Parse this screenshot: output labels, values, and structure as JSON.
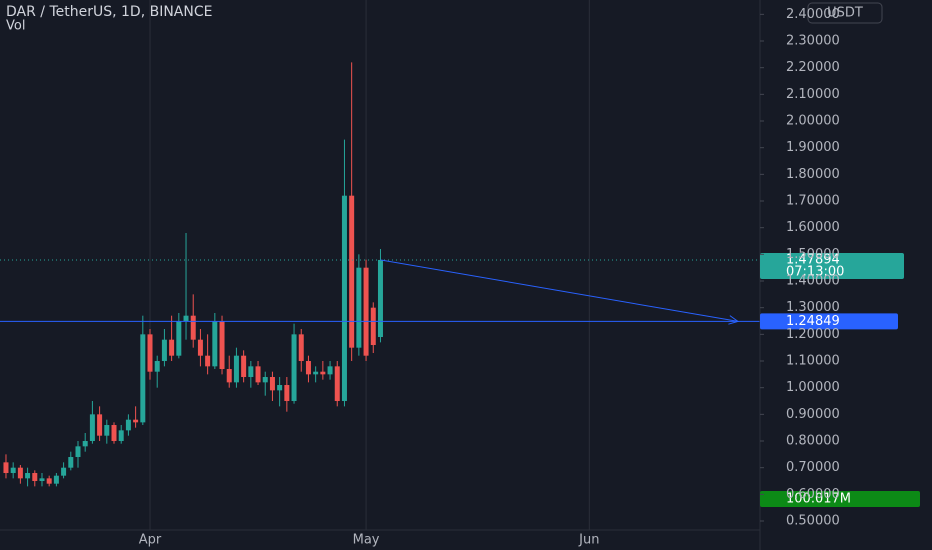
{
  "chart_data": {
    "type": "candlestick",
    "title": "DAR / TetherUS, 1D, BINANCE",
    "subtitle": "Vol",
    "currency": "USDT",
    "up_color": "#26a69a",
    "down_color": "#ef5350",
    "open": [
      0.72,
      0.68,
      0.7,
      0.66,
      0.68,
      0.65,
      0.66,
      0.64,
      0.67,
      0.7,
      0.74,
      0.78,
      0.8,
      0.9,
      0.82,
      0.86,
      0.8,
      0.84,
      0.88,
      0.87,
      1.2,
      1.06,
      1.1,
      1.18,
      1.12,
      1.25,
      1.27,
      1.18,
      1.12,
      1.08,
      1.25,
      1.07,
      1.02,
      1.12,
      1.04,
      1.08,
      1.02,
      1.04,
      0.99,
      1.01,
      0.95,
      1.2,
      1.1,
      1.05,
      1.06,
      1.05,
      1.08,
      0.95,
      1.72,
      1.15,
      1.45,
      1.3,
      1.19
    ],
    "high": [
      0.75,
      0.72,
      0.71,
      0.7,
      0.69,
      0.68,
      0.67,
      0.68,
      0.72,
      0.76,
      0.8,
      0.83,
      0.95,
      0.93,
      0.88,
      0.87,
      0.86,
      0.9,
      0.93,
      1.27,
      1.22,
      1.12,
      1.22,
      1.27,
      1.28,
      1.58,
      1.35,
      1.22,
      1.2,
      1.28,
      1.27,
      1.12,
      1.15,
      1.14,
      1.1,
      1.1,
      1.06,
      1.06,
      1.04,
      1.04,
      1.24,
      1.22,
      1.12,
      1.08,
      1.1,
      1.1,
      1.1,
      1.93,
      2.22,
      1.5,
      1.48,
      1.32,
      1.52
    ],
    "low": [
      0.66,
      0.66,
      0.64,
      0.63,
      0.63,
      0.63,
      0.63,
      0.63,
      0.66,
      0.69,
      0.7,
      0.76,
      0.79,
      0.8,
      0.79,
      0.79,
      0.79,
      0.82,
      0.85,
      0.86,
      1.03,
      1.0,
      1.08,
      1.1,
      1.11,
      1.18,
      1.15,
      1.08,
      1.05,
      1.07,
      1.05,
      1.0,
      1.0,
      1.02,
      1.0,
      1.01,
      0.97,
      0.95,
      0.93,
      0.91,
      0.94,
      1.06,
      1.02,
      1.02,
      1.03,
      1.03,
      0.93,
      0.93,
      1.1,
      1.12,
      1.1,
      1.13,
      1.17
    ],
    "close": [
      0.68,
      0.7,
      0.66,
      0.68,
      0.65,
      0.66,
      0.64,
      0.67,
      0.7,
      0.74,
      0.78,
      0.8,
      0.9,
      0.82,
      0.86,
      0.8,
      0.84,
      0.88,
      0.87,
      1.2,
      1.06,
      1.1,
      1.18,
      1.12,
      1.25,
      1.27,
      1.18,
      1.12,
      1.08,
      1.25,
      1.07,
      1.02,
      1.12,
      1.04,
      1.08,
      1.02,
      1.04,
      0.99,
      1.01,
      0.95,
      1.2,
      1.1,
      1.05,
      1.06,
      1.05,
      1.08,
      0.95,
      1.72,
      1.15,
      1.45,
      1.12,
      1.16,
      1.47894
    ],
    "xlim": [
      -0.83,
      104.7
    ],
    "xticks": [
      {
        "value": 20,
        "label": "Apr"
      },
      {
        "value": 50,
        "label": "May"
      },
      {
        "value": 81,
        "label": "Jun"
      }
    ],
    "ylim": [
      0.4663,
      2.4538
    ],
    "yticks": [
      {
        "value": 0.5,
        "label": "0.50000"
      },
      {
        "value": 0.6,
        "label": "0.60000"
      },
      {
        "value": 0.7,
        "label": "0.70000"
      },
      {
        "value": 0.8,
        "label": "0.80000"
      },
      {
        "value": 0.9,
        "label": "0.90000"
      },
      {
        "value": 1.0,
        "label": "1.00000"
      },
      {
        "value": 1.1,
        "label": "1.10000"
      },
      {
        "value": 1.2,
        "label": "1.20000"
      },
      {
        "value": 1.3,
        "label": "1.30000"
      },
      {
        "value": 1.4,
        "label": "1.40000"
      },
      {
        "value": 1.5,
        "label": "1.50000"
      },
      {
        "value": 1.6,
        "label": "1.60000"
      },
      {
        "value": 1.7,
        "label": "1.70000"
      },
      {
        "value": 1.8,
        "label": "1.80000"
      },
      {
        "value": 1.9,
        "label": "1.90000"
      },
      {
        "value": 2.0,
        "label": "2.00000"
      },
      {
        "value": 2.1,
        "label": "2.10000"
      },
      {
        "value": 2.2,
        "label": "2.20000"
      },
      {
        "value": 2.3,
        "label": "2.30000"
      },
      {
        "value": 2.4,
        "label": "2.40000"
      }
    ],
    "grid": {
      "x": true,
      "y": false
    },
    "last_price": {
      "value": 1.47894,
      "label": "1.47894",
      "countdown": "07:13:00",
      "color": "#26a69a"
    },
    "horizontal_line": {
      "value": 1.24849,
      "label": "1.24849",
      "color": "#2962ff"
    },
    "volume_last": {
      "value": 100.017,
      "label": "100.017M",
      "color": "#0c8a16"
    }
  }
}
